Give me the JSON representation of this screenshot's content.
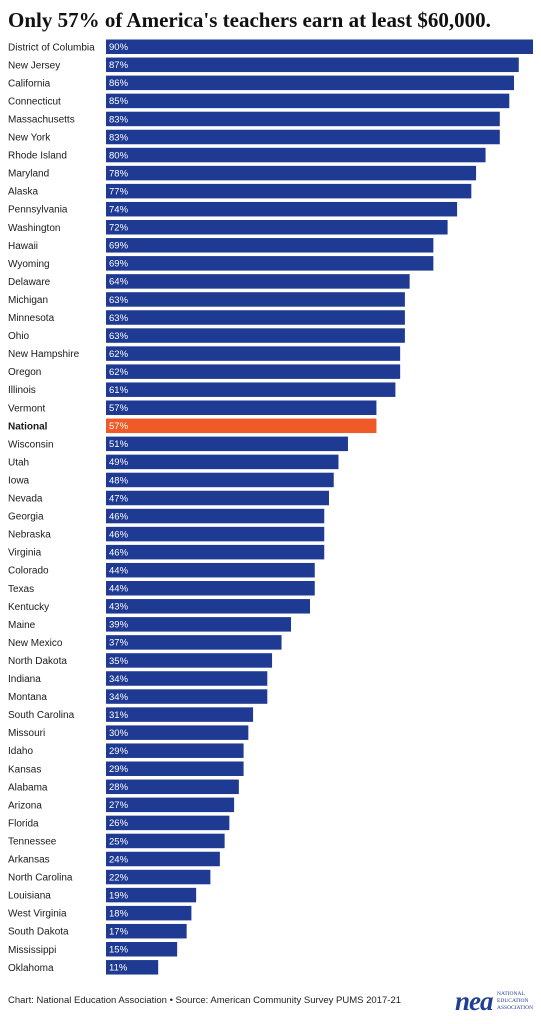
{
  "title": "Only 57% of America's teachers earn at least $60,000.",
  "footer": "Chart: National Education Association • Source: American Community Survey PUMS 2017-21",
  "logo": {
    "mark": "nea",
    "lines": [
      "NATIONAL",
      "EDUCATION",
      "ASSOCIATION"
    ]
  },
  "colors": {
    "bar": "#1f3a93",
    "highlight": "#f05a28",
    "label": "#1a1a1a",
    "value_text": "#ffffff"
  },
  "chart_data": {
    "type": "bar",
    "orientation": "horizontal",
    "title": "Only 57% of America's teachers earn at least $60,000.",
    "value_suffix": "%",
    "xlim": [
      0,
      90
    ],
    "highlight": "National",
    "categories": [
      "District of Columbia",
      "New Jersey",
      "California",
      "Connecticut",
      "Massachusetts",
      "New York",
      "Rhode Island",
      "Maryland",
      "Alaska",
      "Pennsylvania",
      "Washington",
      "Hawaii",
      "Wyoming",
      "Delaware",
      "Michigan",
      "Minnesota",
      "Ohio",
      "New Hampshire",
      "Oregon",
      "Illinois",
      "Vermont",
      "National",
      "Wisconsin",
      "Utah",
      "Iowa",
      "Nevada",
      "Georgia",
      "Nebraska",
      "Virginia",
      "Colorado",
      "Texas",
      "Kentucky",
      "Maine",
      "New Mexico",
      "North Dakota",
      "Indiana",
      "Montana",
      "South Carolina",
      "Missouri",
      "Idaho",
      "Kansas",
      "Alabama",
      "Arizona",
      "Florida",
      "Tennessee",
      "Arkansas",
      "North Carolina",
      "Louisiana",
      "West Virginia",
      "South Dakota",
      "Mississippi",
      "Oklahoma"
    ],
    "values": [
      90,
      87,
      86,
      85,
      83,
      83,
      80,
      78,
      77,
      74,
      72,
      69,
      69,
      64,
      63,
      63,
      63,
      62,
      62,
      61,
      57,
      57,
      51,
      49,
      48,
      47,
      46,
      46,
      46,
      44,
      44,
      43,
      39,
      37,
      35,
      34,
      34,
      31,
      30,
      29,
      29,
      28,
      27,
      26,
      25,
      24,
      22,
      19,
      18,
      17,
      15,
      11
    ]
  }
}
